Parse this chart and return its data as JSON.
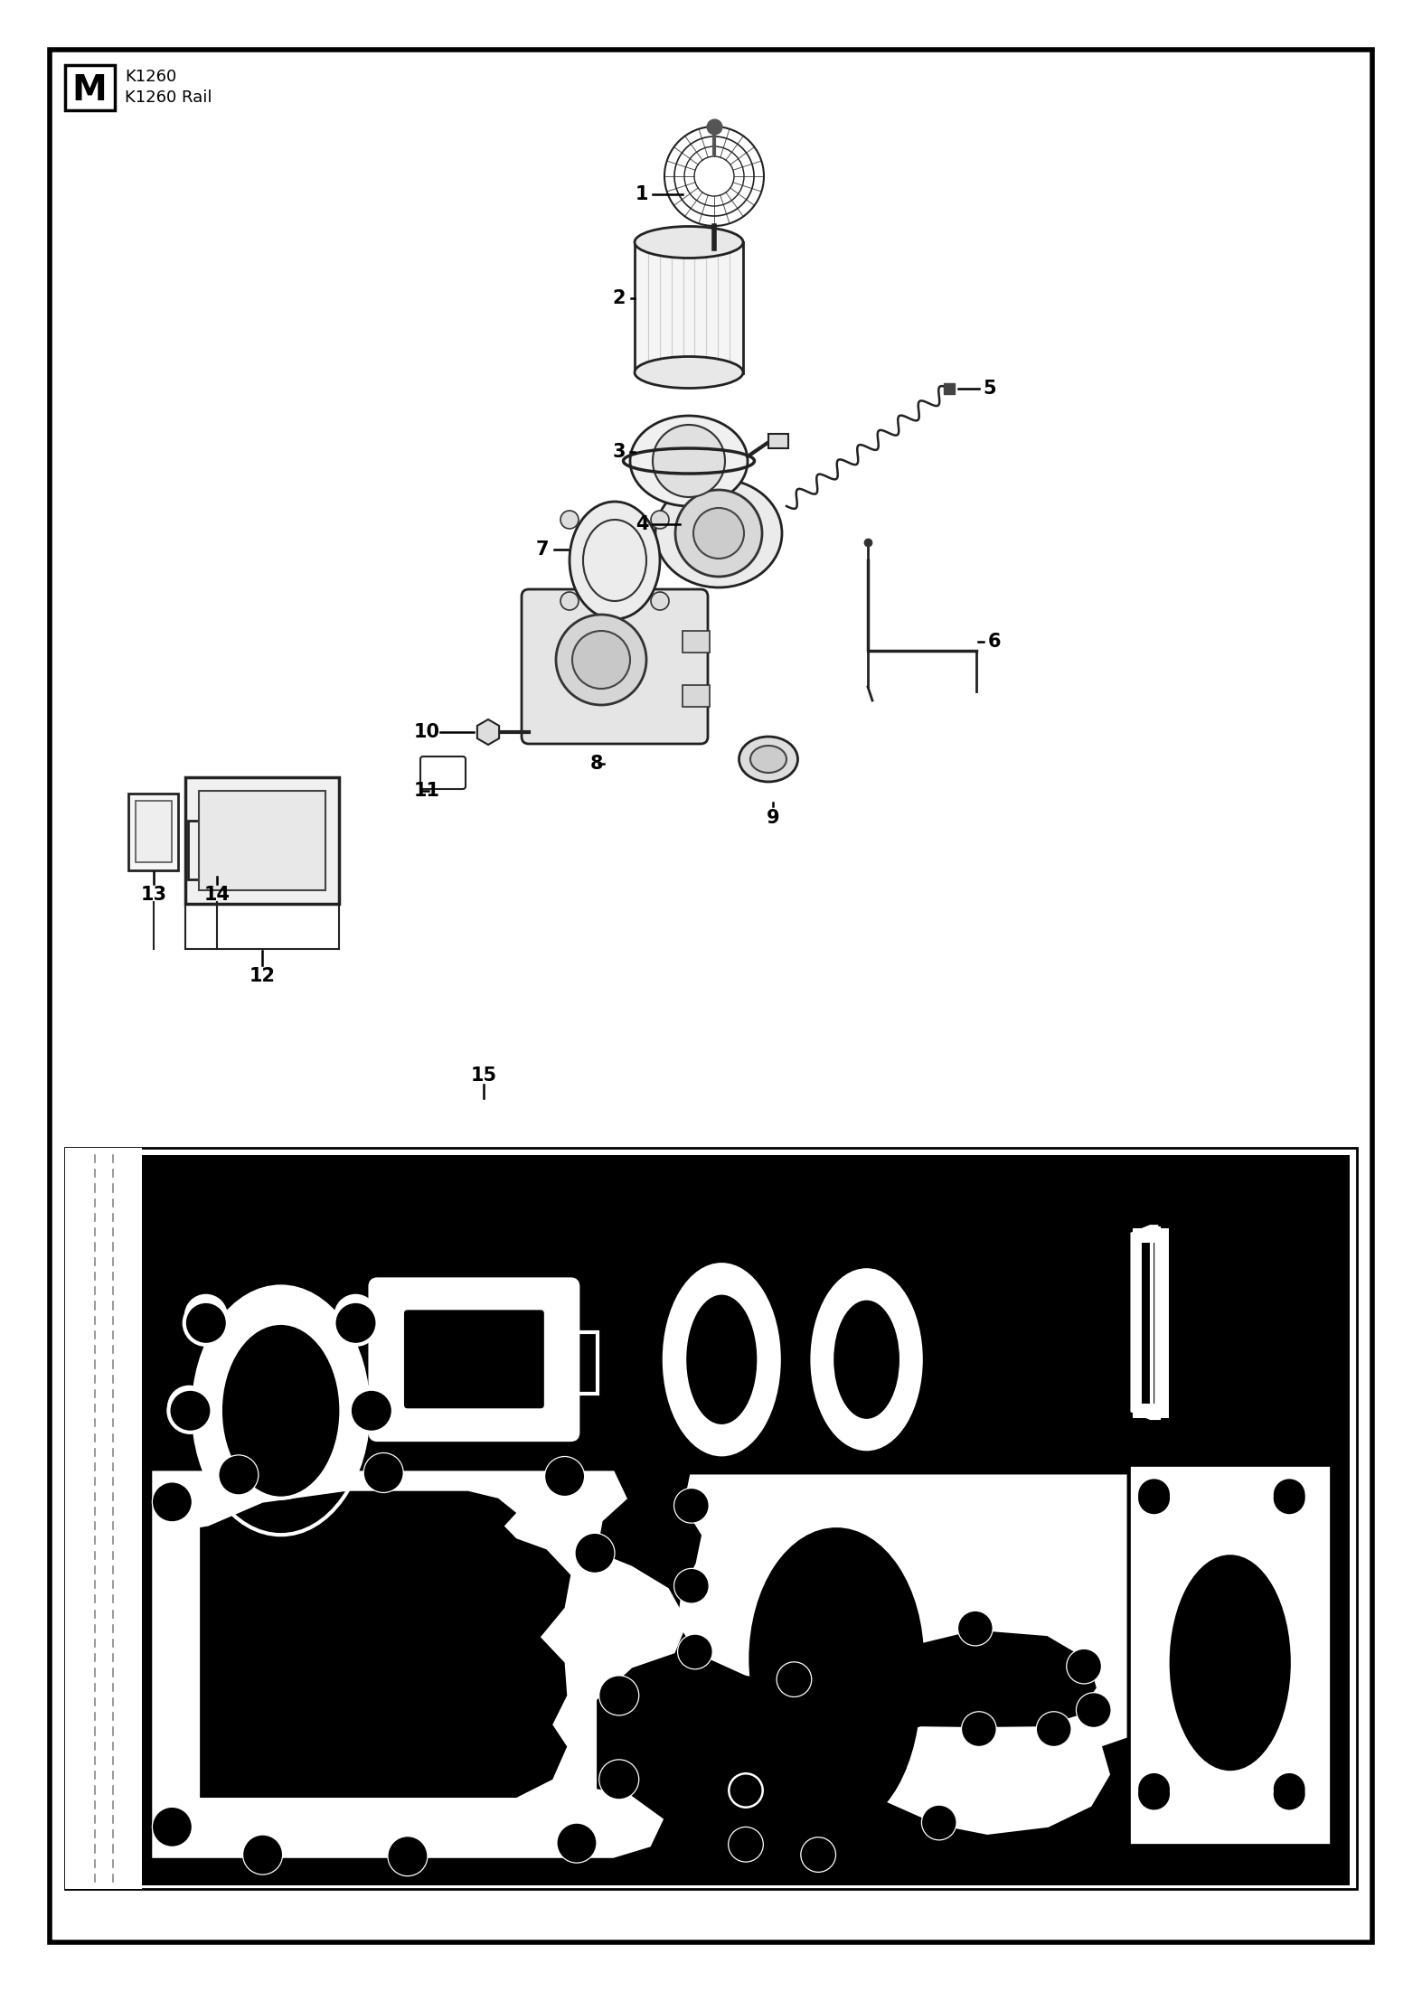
{
  "bg_color": "#ffffff",
  "border_color": "#000000",
  "text_color": "#000000",
  "model_letter": "M",
  "model_names": [
    "K1260",
    "K1260 Rail"
  ],
  "fig_width": 15.73,
  "fig_height": 22.04
}
